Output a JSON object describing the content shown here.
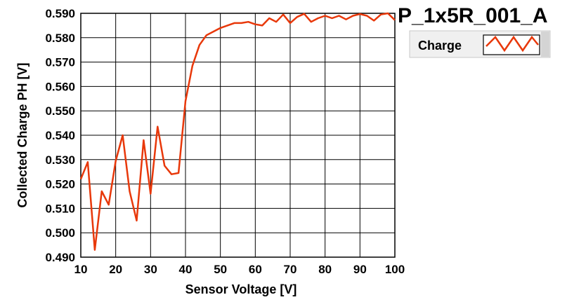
{
  "chart_data": {
    "type": "line",
    "title": "P_1x5R_001_A",
    "xlabel": "Sensor Voltage [V]",
    "ylabel": "Collected Charge PH [V]",
    "xlim": [
      10,
      100
    ],
    "ylim": [
      0.49,
      0.59
    ],
    "x_ticks": [
      "10",
      "20",
      "30",
      "40",
      "50",
      "60",
      "70",
      "80",
      "90",
      "100"
    ],
    "y_ticks": [
      "0.490",
      "0.500",
      "0.510",
      "0.520",
      "0.530",
      "0.540",
      "0.550",
      "0.560",
      "0.570",
      "0.580",
      "0.590"
    ],
    "grid": true,
    "legend_position": "top-right",
    "series": [
      {
        "name": "Charge",
        "color": "#e8380a",
        "x": [
          10,
          12,
          14,
          16,
          18,
          20,
          22,
          24,
          26,
          28,
          30,
          32,
          34,
          36,
          38,
          40,
          42,
          44,
          46,
          48,
          50,
          52,
          54,
          56,
          58,
          60,
          62,
          64,
          66,
          68,
          70,
          72,
          74,
          76,
          78,
          80,
          82,
          84,
          86,
          88,
          90,
          92,
          94,
          96,
          98,
          100
        ],
        "values": [
          0.522,
          0.529,
          0.493,
          0.517,
          0.5115,
          0.5295,
          0.54,
          0.517,
          0.505,
          0.538,
          0.516,
          0.5435,
          0.5275,
          0.524,
          0.5245,
          0.554,
          0.5685,
          0.577,
          0.581,
          0.5825,
          0.584,
          0.585,
          0.586,
          0.586,
          0.5865,
          0.5855,
          0.585,
          0.588,
          0.5865,
          0.5895,
          0.586,
          0.5885,
          0.5898,
          0.5865,
          0.588,
          0.589,
          0.588,
          0.589,
          0.5875,
          0.589,
          0.5897,
          0.589,
          0.587,
          0.5895,
          0.59,
          0.5872
        ]
      }
    ]
  }
}
